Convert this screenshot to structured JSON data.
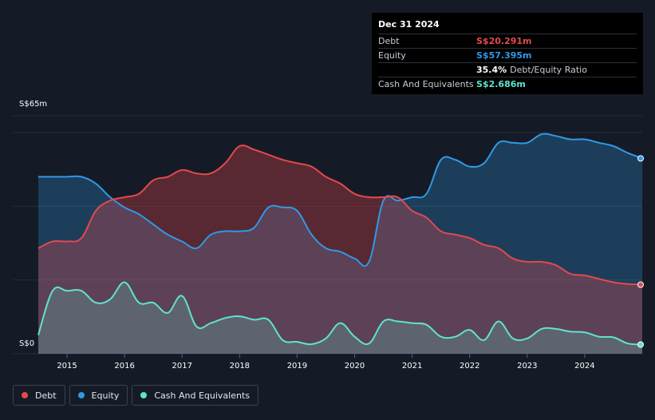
{
  "tooltip": {
    "date": "Dec 31 2024",
    "rows": [
      {
        "label": "Debt",
        "value": "S$20.291m",
        "color": "#e5484d"
      },
      {
        "label": "Equity",
        "value": "S$57.395m",
        "color": "#2f9ae6"
      },
      {
        "label": "",
        "value": "35.4%",
        "extra": "Debt/Equity Ratio",
        "color": "#ffffff"
      },
      {
        "label": "Cash And Equivalents",
        "value": "S$2.686m",
        "color": "#5fe3cf"
      }
    ]
  },
  "legend": [
    {
      "label": "Debt",
      "color": "#e5484d"
    },
    {
      "label": "Equity",
      "color": "#2f9ae6"
    },
    {
      "label": "Cash And Equivalents",
      "color": "#5fe3cf"
    }
  ],
  "chart_data": {
    "type": "area",
    "title": "",
    "xlabel": "",
    "ylabel": "",
    "y_top_label": "S$65m",
    "y_bottom_label": "S$0",
    "ylim": [
      0,
      65
    ],
    "xlim": [
      2014.5,
      2025.0
    ],
    "x_ticks": [
      "2015",
      "2016",
      "2017",
      "2018",
      "2019",
      "2020",
      "2021",
      "2022",
      "2023",
      "2024"
    ],
    "x_tick_values": [
      2015,
      2016,
      2017,
      2018,
      2019,
      2020,
      2021,
      2022,
      2023,
      2024
    ],
    "series": [
      {
        "name": "Equity",
        "color": "#2f9ae6",
        "x": [
          2014.5,
          2014.75,
          2015.0,
          2015.25,
          2015.5,
          2015.75,
          2016.0,
          2016.25,
          2016.5,
          2016.75,
          2017.0,
          2017.25,
          2017.5,
          2017.75,
          2018.0,
          2018.25,
          2018.5,
          2018.75,
          2019.0,
          2019.25,
          2019.5,
          2019.75,
          2020.0,
          2020.25,
          2020.5,
          2020.75,
          2021.0,
          2021.25,
          2021.5,
          2021.75,
          2022.0,
          2022.25,
          2022.5,
          2022.75,
          2023.0,
          2023.25,
          2023.5,
          2023.75,
          2024.0,
          2024.25,
          2024.5,
          2024.75,
          2025.0
        ],
        "values": [
          52,
          52,
          52,
          52,
          50,
          46,
          43,
          41,
          38,
          35,
          33,
          31,
          35,
          36,
          36,
          37,
          43,
          43,
          42,
          35,
          31,
          30,
          28,
          27,
          45,
          45,
          46,
          47,
          57,
          57,
          55,
          56,
          62,
          62,
          62,
          64.5,
          64,
          63,
          63,
          62,
          61,
          59,
          57.4
        ]
      },
      {
        "name": "Debt",
        "color": "#e5484d",
        "x": [
          2014.5,
          2014.75,
          2015.0,
          2015.25,
          2015.5,
          2015.75,
          2016.0,
          2016.25,
          2016.5,
          2016.75,
          2017.0,
          2017.25,
          2017.5,
          2017.75,
          2018.0,
          2018.25,
          2018.5,
          2018.75,
          2019.0,
          2019.25,
          2019.5,
          2019.75,
          2020.0,
          2020.25,
          2020.5,
          2020.75,
          2021.0,
          2021.25,
          2021.5,
          2021.75,
          2022.0,
          2022.25,
          2022.5,
          2022.75,
          2023.0,
          2023.25,
          2023.5,
          2023.75,
          2024.0,
          2024.25,
          2024.5,
          2024.75,
          2025.0
        ],
        "values": [
          31,
          33,
          33,
          34,
          42,
          45,
          46,
          47,
          51,
          52,
          54,
          53,
          53,
          56,
          61,
          60,
          58.5,
          57,
          56,
          55,
          52,
          50,
          47,
          46,
          46,
          46,
          42,
          40,
          36,
          35,
          34,
          32,
          31,
          28,
          27,
          27,
          26,
          23.5,
          23,
          22,
          21,
          20.5,
          20.3
        ]
      },
      {
        "name": "Cash And Equivalents",
        "color": "#5fe3cf",
        "x": [
          2014.5,
          2014.75,
          2015.0,
          2015.25,
          2015.5,
          2015.75,
          2016.0,
          2016.25,
          2016.5,
          2016.75,
          2017.0,
          2017.25,
          2017.5,
          2017.75,
          2018.0,
          2018.25,
          2018.5,
          2018.75,
          2019.0,
          2019.25,
          2019.5,
          2019.75,
          2020.0,
          2020.25,
          2020.5,
          2020.75,
          2021.0,
          2021.25,
          2021.5,
          2021.75,
          2022.0,
          2022.25,
          2022.5,
          2022.75,
          2023.0,
          2023.25,
          2023.5,
          2023.75,
          2024.0,
          2024.25,
          2024.5,
          2024.75,
          2025.0
        ],
        "values": [
          5.5,
          18.5,
          18.5,
          18.5,
          15,
          16,
          21,
          15,
          15,
          12,
          17,
          8,
          9,
          10.5,
          11,
          10,
          10,
          4,
          3.5,
          2.8,
          4.5,
          9,
          5,
          3,
          9.5,
          9.5,
          9,
          8.5,
          5,
          5,
          7,
          4,
          9.5,
          4.5,
          4.5,
          7.3,
          7.3,
          6.5,
          6.3,
          5,
          4.8,
          3,
          2.7
        ]
      }
    ]
  }
}
